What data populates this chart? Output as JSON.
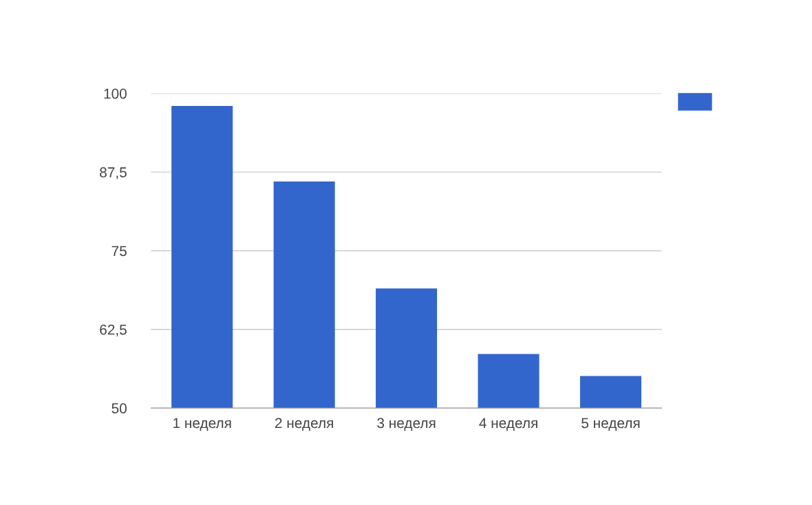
{
  "chart_data": {
    "type": "bar",
    "categories": [
      "1 неделя",
      "2 неделя",
      "3 неделя",
      "4 неделя",
      "5 неделя"
    ],
    "series": [
      {
        "color": "#3366cc",
        "values": [
          98,
          86,
          69,
          58.6,
          55.1
        ]
      }
    ],
    "ylim": [
      50,
      100
    ],
    "yticks": [
      50,
      {
        "value": 62.5,
        "label": "62,5"
      },
      75,
      {
        "value": 87.5,
        "label": "87,5"
      },
      100
    ],
    "grid": "y"
  }
}
